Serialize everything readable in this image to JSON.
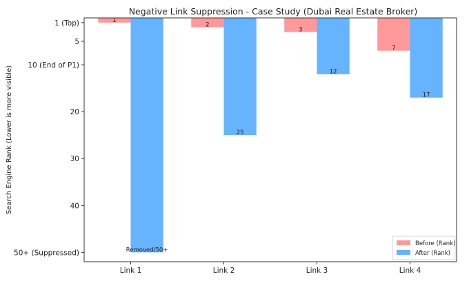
{
  "chart_data": {
    "type": "bar",
    "title": "Negative Link Suppression - Case Study (Dubai Real Estate Broker)",
    "xlabel": "",
    "ylabel": "Search Engine Rank (Lower is more visible)",
    "categories": [
      "Link 1",
      "Link 2",
      "Link 3",
      "Link 4"
    ],
    "ylim": [
      0,
      52
    ],
    "y_inverted": true,
    "y_ticks": [
      {
        "value": 1,
        "label": "1 (Top)"
      },
      {
        "value": 5,
        "label": "5"
      },
      {
        "value": 10,
        "label": "10 (End of P1)"
      },
      {
        "value": 20,
        "label": "20"
      },
      {
        "value": 30,
        "label": "30"
      },
      {
        "value": 40,
        "label": "40"
      },
      {
        "value": 50,
        "label": "50+ (Suppressed)"
      }
    ],
    "series": [
      {
        "name": "Before (Rank)",
        "color": "#ff9999",
        "values": [
          1,
          2,
          3,
          7
        ],
        "labels": [
          "1",
          "2",
          "3",
          "7"
        ]
      },
      {
        "name": "After (Rank)",
        "color": "#66b3ff",
        "values": [
          50,
          25,
          12,
          17
        ],
        "labels": [
          "Removed/50+",
          "25",
          "12",
          "17"
        ]
      }
    ],
    "legend_position": "bottom-right",
    "grid": false
  }
}
